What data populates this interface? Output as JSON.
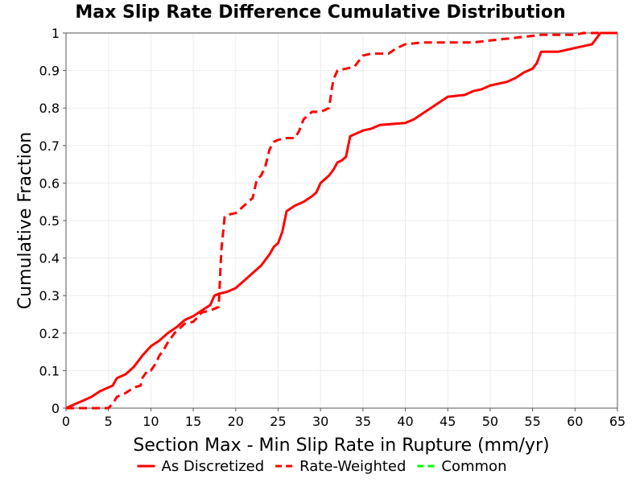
{
  "chart_data": {
    "type": "line",
    "title": "Max Slip Rate Difference Cumulative Distribution",
    "xlabel": "Section Max - Min Slip Rate in Rupture (mm/yr)",
    "ylabel": "Cumulative Fraction",
    "xlim": [
      0,
      65
    ],
    "ylim": [
      0,
      1
    ],
    "grid": true,
    "legend_position": "bottom",
    "x_ticks": [
      0,
      5,
      10,
      15,
      20,
      25,
      30,
      35,
      40,
      45,
      50,
      55,
      60,
      65
    ],
    "x_tick_labels": [
      "0",
      "5",
      "10",
      "15",
      "20",
      "25",
      "30",
      "35",
      "40",
      "45",
      "50",
      "55",
      "60",
      "65"
    ],
    "y_ticks": [
      0,
      0.1,
      0.2,
      0.3,
      0.4,
      0.5,
      0.6,
      0.7,
      0.8,
      0.9,
      1
    ],
    "y_tick_labels": [
      "0",
      "0.1",
      "0.2",
      "0.3",
      "0.4",
      "0.5",
      "0.6",
      "0.7",
      "0.8",
      "0.9",
      "1"
    ],
    "series": [
      {
        "name": "As Discretized",
        "color": "#ff0000",
        "style": "solid",
        "x": [
          0,
          1,
          2,
          3,
          4,
          5,
          5.5,
          6,
          7,
          8,
          9,
          10,
          11,
          12,
          13,
          14,
          15,
          16,
          17,
          17.5,
          18,
          19,
          20,
          21,
          22,
          23,
          24,
          24.5,
          25,
          25.5,
          26,
          27,
          28,
          29,
          29.5,
          30,
          31,
          31.5,
          32,
          32.5,
          33,
          33.5,
          35,
          36,
          37,
          40,
          41,
          42,
          43,
          44,
          45,
          47,
          48,
          49,
          50,
          52,
          53,
          54,
          55,
          55.5,
          56,
          58,
          59,
          60,
          61,
          62,
          62.5,
          63,
          64,
          65
        ],
        "y": [
          0,
          0.01,
          0.02,
          0.03,
          0.045,
          0.055,
          0.06,
          0.08,
          0.09,
          0.11,
          0.14,
          0.165,
          0.18,
          0.2,
          0.215,
          0.235,
          0.245,
          0.26,
          0.275,
          0.3,
          0.305,
          0.31,
          0.32,
          0.34,
          0.36,
          0.38,
          0.41,
          0.43,
          0.44,
          0.47,
          0.525,
          0.54,
          0.55,
          0.565,
          0.575,
          0.6,
          0.62,
          0.635,
          0.655,
          0.66,
          0.67,
          0.725,
          0.74,
          0.745,
          0.755,
          0.76,
          0.77,
          0.785,
          0.8,
          0.815,
          0.83,
          0.835,
          0.845,
          0.85,
          0.86,
          0.87,
          0.88,
          0.895,
          0.905,
          0.92,
          0.95,
          0.95,
          0.955,
          0.96,
          0.965,
          0.97,
          0.985,
          1,
          1,
          1
        ]
      },
      {
        "name": "Rate-Weighted",
        "color": "#ff0000",
        "style": "dashed",
        "x": [
          0,
          5,
          5.2,
          5.6,
          6,
          7,
          8,
          8.8,
          9,
          9.6,
          10,
          10.6,
          11,
          11.5,
          12,
          12.8,
          13.5,
          14,
          15,
          16,
          17,
          18,
          18.3,
          18.7,
          19,
          20,
          21,
          22,
          22.5,
          23,
          23.5,
          24,
          24.5,
          25,
          26,
          27,
          27.5,
          28,
          29,
          30,
          31,
          31.5,
          32,
          33,
          34,
          35,
          36,
          37,
          38,
          39,
          40,
          42,
          44,
          46,
          48,
          50,
          52,
          54,
          56,
          57,
          58,
          60,
          61,
          62,
          63,
          64,
          65
        ],
        "y": [
          0,
          0,
          0.005,
          0.015,
          0.03,
          0.04,
          0.055,
          0.06,
          0.08,
          0.1,
          0.1,
          0.12,
          0.14,
          0.155,
          0.175,
          0.2,
          0.215,
          0.225,
          0.23,
          0.255,
          0.26,
          0.27,
          0.42,
          0.51,
          0.515,
          0.52,
          0.54,
          0.56,
          0.61,
          0.62,
          0.645,
          0.69,
          0.71,
          0.715,
          0.72,
          0.72,
          0.74,
          0.77,
          0.79,
          0.79,
          0.8,
          0.875,
          0.9,
          0.905,
          0.91,
          0.94,
          0.945,
          0.945,
          0.945,
          0.96,
          0.97,
          0.975,
          0.975,
          0.975,
          0.975,
          0.98,
          0.985,
          0.99,
          0.995,
          0.995,
          0.995,
          0.995,
          1,
          1,
          1,
          1,
          1
        ]
      },
      {
        "name": "Common",
        "color": "#00ff00",
        "style": "dashed",
        "x": [],
        "y": []
      }
    ]
  }
}
